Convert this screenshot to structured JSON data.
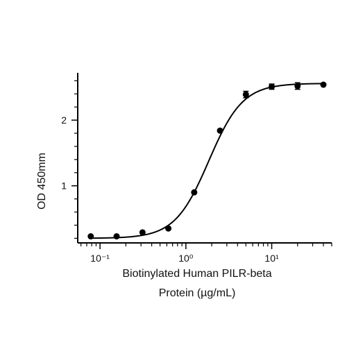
{
  "chart_data": {
    "type": "scatter",
    "xlabel_line1": "Biotinylated Human PILR-beta",
    "xlabel_line2": "Protein (µg/mL)",
    "ylabel": "OD 450mm",
    "x_scale": "log10",
    "xlim": [
      0.055,
      50
    ],
    "ylim": [
      0.13,
      2.72
    ],
    "x_major_ticks": [
      0.1,
      1,
      10
    ],
    "x_tick_labels": [
      "10⁻¹",
      "10⁰",
      "10¹"
    ],
    "y_major_ticks": [
      1,
      2
    ],
    "y_tick_labels": [
      "1",
      "2"
    ],
    "grid": false,
    "points": [
      {
        "x": 0.078,
        "y": 0.23,
        "err": 0
      },
      {
        "x": 0.156,
        "y": 0.23,
        "err": 0
      },
      {
        "x": 0.3125,
        "y": 0.29,
        "err": 0
      },
      {
        "x": 0.625,
        "y": 0.35,
        "err": 0
      },
      {
        "x": 1.25,
        "y": 0.9,
        "err": 0
      },
      {
        "x": 2.5,
        "y": 1.84,
        "err": 0
      },
      {
        "x": 5,
        "y": 2.39,
        "err": 0.05
      },
      {
        "x": 10,
        "y": 2.51,
        "err": 0.04
      },
      {
        "x": 20,
        "y": 2.52,
        "err": 0.05
      },
      {
        "x": 40,
        "y": 2.54,
        "err": 0
      }
    ],
    "fit": {
      "model": "4PL",
      "bottom": 0.2,
      "top": 2.56,
      "ec50": 1.85,
      "hill": 2.2
    }
  }
}
